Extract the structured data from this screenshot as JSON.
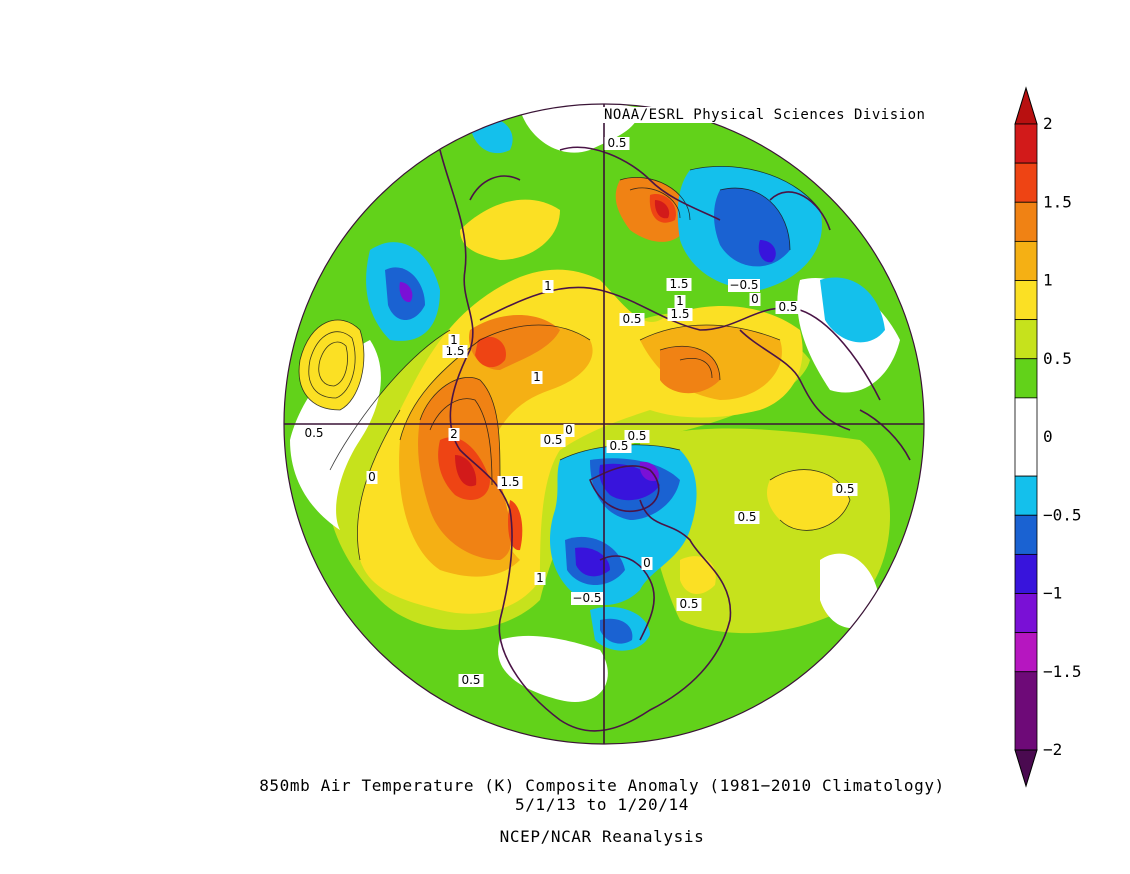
{
  "header": {
    "credit": "NOAA/ESRL Physical Sciences Division"
  },
  "caption": {
    "line1": "850mb Air Temperature (K) Composite Anomaly (1981−2010 Climatology)",
    "line2": "5/1/13  to 1/20/14",
    "line3": "NCEP/NCAR Reanalysis"
  },
  "colorbar": {
    "tick_labels": [
      "2",
      "1.5",
      "1",
      "0.5",
      "0",
      "−0.5",
      "−1",
      "−1.5",
      "−2"
    ],
    "tick_values": [
      2,
      1.5,
      1,
      0.5,
      0,
      -0.5,
      -1,
      -1.5,
      -2
    ],
    "bins": [
      {
        "range": [
          1.75,
          2.0
        ],
        "color": "#d21a1a"
      },
      {
        "range": [
          1.5,
          1.75
        ],
        "color": "#ee4414"
      },
      {
        "range": [
          1.25,
          1.5
        ],
        "color": "#f08214"
      },
      {
        "range": [
          1.0,
          1.25
        ],
        "color": "#f5b014"
      },
      {
        "range": [
          0.75,
          1.0
        ],
        "color": "#fbe024"
      },
      {
        "range": [
          0.5,
          0.75
        ],
        "color": "#c6e21c"
      },
      {
        "range": [
          0.25,
          0.5
        ],
        "color": "#62d21a"
      },
      {
        "range": [
          -0.25,
          0.25
        ],
        "color": "#ffffff"
      },
      {
        "range": [
          -0.5,
          -0.25
        ],
        "color": "#14c0ec"
      },
      {
        "range": [
          -0.75,
          -0.5
        ],
        "color": "#1a62d2"
      },
      {
        "range": [
          -1.0,
          -0.75
        ],
        "color": "#3814dc"
      },
      {
        "range": [
          -1.25,
          -1.0
        ],
        "color": "#7a10d6"
      },
      {
        "range": [
          -1.5,
          -1.25
        ],
        "color": "#b616c0"
      },
      {
        "range": [
          -2.0,
          -1.5
        ],
        "color": "#6e0a78"
      }
    ],
    "over_color": "#b81010",
    "under_color": "#4a0a50"
  },
  "map": {
    "projection": "north polar stereographic",
    "contour_labels": [
      "0.5",
      "0.5",
      "1",
      "1.5",
      "1",
      "1.5",
      "0.5",
      "1",
      "1.5",
      "1",
      "−0.5",
      "0",
      "0.5",
      "0",
      "0.5",
      "0.5",
      "0",
      "0.5",
      "2",
      "1.5",
      "0",
      "1",
      "0.5",
      "0.5",
      "−0.5",
      "0.5",
      "0.5"
    ]
  }
}
